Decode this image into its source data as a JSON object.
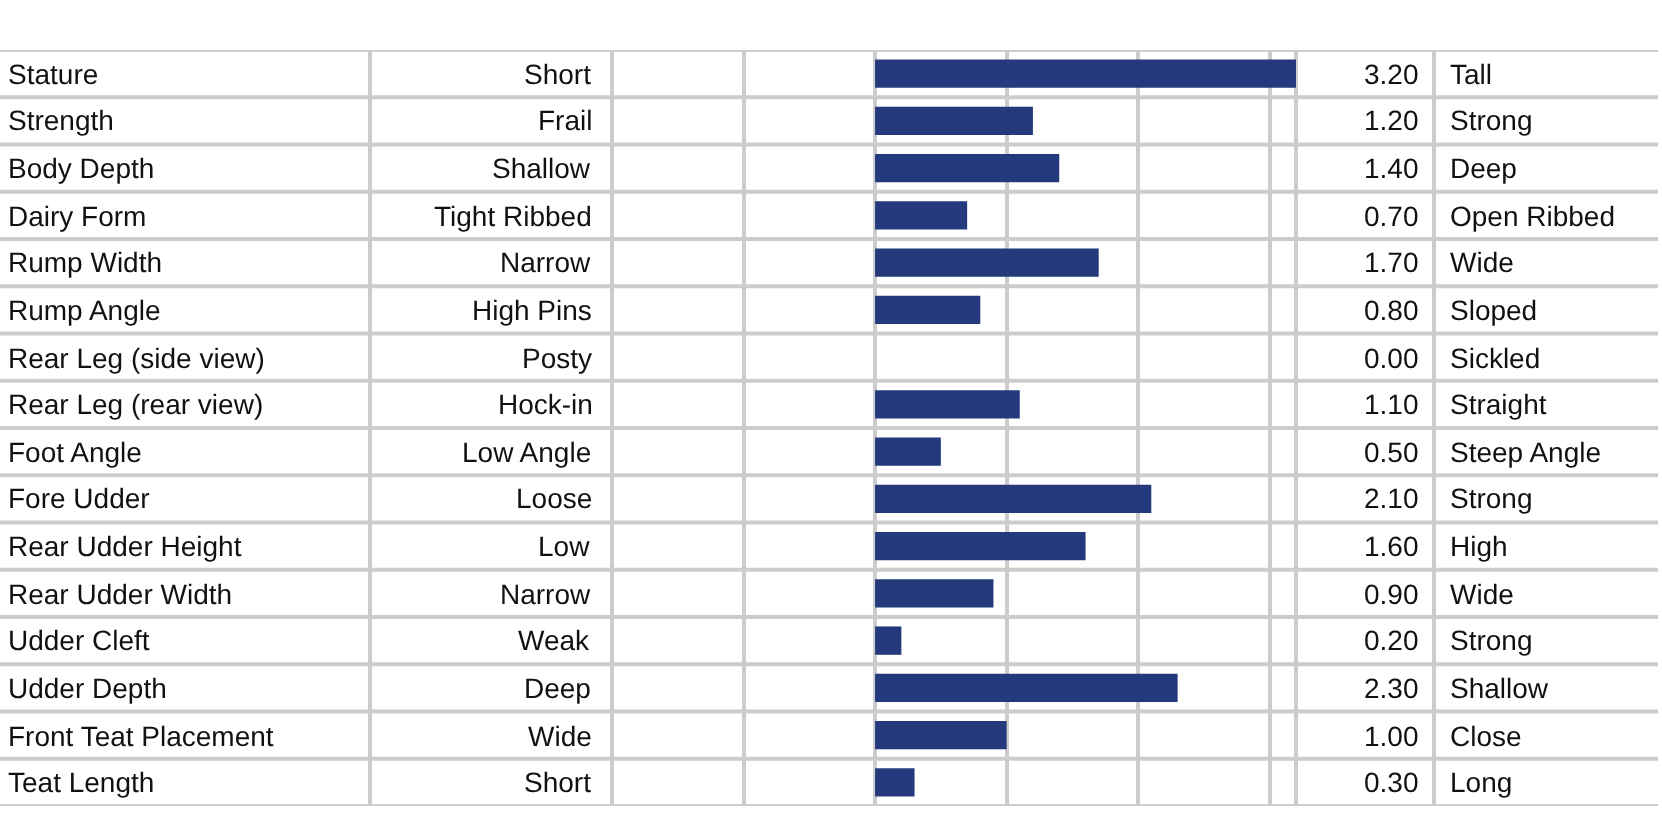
{
  "chart_data": {
    "type": "bar",
    "orientation": "horizontal",
    "categories": [
      "Stature",
      "Strength",
      "Body Depth",
      "Dairy Form",
      "Rump Width",
      "Rump Angle",
      "Rear Leg (side view)",
      "Rear Leg (rear view)",
      "Foot Angle",
      "Fore Udder",
      "Rear Udder Height",
      "Rear Udder Width",
      "Udder Cleft",
      "Udder Depth",
      "Front Teat Placement",
      "Teat Length"
    ],
    "values": [
      3.2,
      1.2,
      1.4,
      0.7,
      1.7,
      0.8,
      0,
      1.1,
      0.5,
      2.1,
      1.6,
      0.9,
      0.2,
      2.3,
      1.0,
      0.3
    ],
    "value_labels": [
      "3.20",
      "1.20",
      "1.40",
      "0.70",
      "1.70",
      "0.80",
      "0.00",
      "1.10",
      "0.50",
      "2.10",
      "1.60",
      "0.90",
      "0.20",
      "2.30",
      "1.00",
      "0.30"
    ],
    "color": "#243a7c",
    "xlim": [
      -2,
      3.2
    ],
    "xticks": [
      {
        "value": -2,
        "label": null
      },
      {
        "value": -1,
        "label": null
      },
      {
        "value": 0,
        "label": null
      },
      {
        "value": 1,
        "label": null
      },
      {
        "value": 2,
        "label": null
      },
      {
        "value": 3,
        "label": null
      }
    ],
    "grid": "x",
    "tick_labels": "y",
    "annotations": [
      "Short",
      "Frail",
      "Shallow",
      "Tight Ribbed",
      "Narrow",
      "High Pins",
      "Posty",
      "Hock-in",
      "Low Angle",
      "Loose",
      "Low",
      "Narrow",
      "Weak",
      "Deep",
      "Wide",
      "Short",
      "Tall",
      "Strong",
      "Deep",
      "Open Ribbed",
      "Wide",
      "Sloped",
      "Sickled",
      "Straight",
      "Steep Angle",
      "Strong",
      "High",
      "Wide",
      "Strong",
      "Shallow",
      "Close",
      "Long"
    ]
  }
}
